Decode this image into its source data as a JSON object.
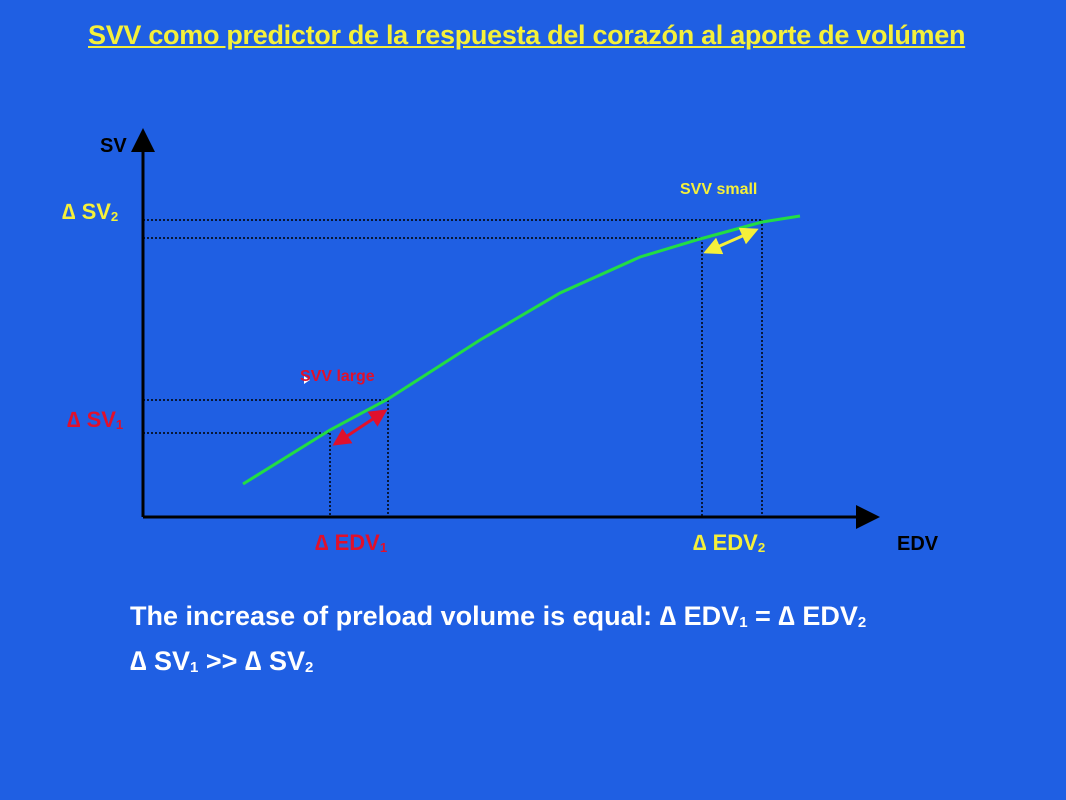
{
  "title": "SVV como predictor de la respuesta del corazón al aporte de volúmen",
  "diagram": {
    "y_axis_label": "SV",
    "x_axis_label": "EDV",
    "sv_labels": [
      {
        "text": "∆ SV",
        "sub": "1"
      },
      {
        "text": "∆ SV",
        "sub": "2"
      }
    ],
    "edv_labels": [
      {
        "text": "∆ EDV",
        "sub": "1"
      },
      {
        "text": "∆ EDV",
        "sub": "2"
      }
    ],
    "svv_large": "SVV large",
    "svv_small": "SVV small"
  },
  "conclusion": {
    "line1": [
      {
        "text": "The increase of preload volume is equal: ∆ EDV",
        "sub": "1"
      },
      {
        "text": " = ∆ EDV",
        "sub": "2"
      }
    ],
    "line2": [
      {
        "text": "∆ SV",
        "sub": "1"
      },
      {
        "text": " >> ∆ SV",
        "sub": "2"
      }
    ]
  }
}
